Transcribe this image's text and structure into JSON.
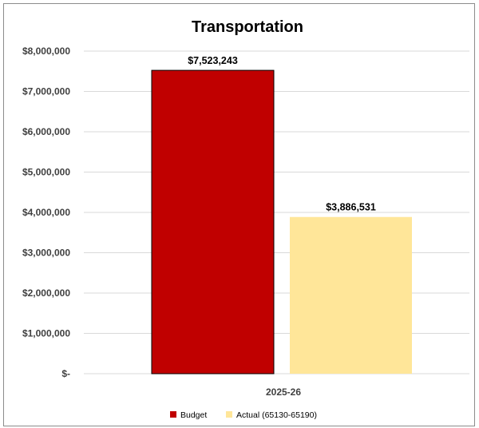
{
  "chart_data": {
    "type": "bar",
    "title": "Transportation",
    "categories": [
      "2025-26"
    ],
    "series": [
      {
        "name": "Budget",
        "values": [
          7523243
        ],
        "color": "#c00000",
        "label": "$7,523,243"
      },
      {
        "name": "Actual (65130-65190)",
        "values": [
          3886531
        ],
        "color": "#ffe699",
        "label": "$3,886,531"
      }
    ],
    "ylim": [
      0,
      8000000
    ],
    "yticks": [
      {
        "value": 8000000,
        "label": "$8,000,000"
      },
      {
        "value": 7000000,
        "label": "$7,000,000"
      },
      {
        "value": 6000000,
        "label": "$6,000,000"
      },
      {
        "value": 5000000,
        "label": "$5,000,000"
      },
      {
        "value": 4000000,
        "label": "$4,000,000"
      },
      {
        "value": 3000000,
        "label": "$3,000,000"
      },
      {
        "value": 2000000,
        "label": "$2,000,000"
      },
      {
        "value": 1000000,
        "label": "$1,000,000"
      },
      {
        "value": 0,
        "label": "$-"
      }
    ],
    "grid": true,
    "legend_position": "bottom"
  }
}
